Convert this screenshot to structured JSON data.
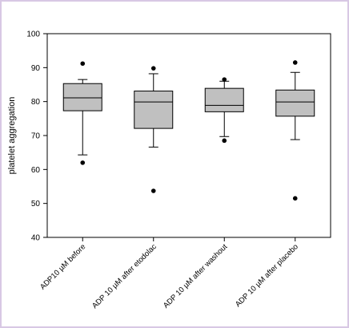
{
  "chart_data": {
    "type": "box",
    "title": "",
    "ylabel": "platelet aggregation",
    "xlabel": "",
    "ylim": [
      40,
      100
    ],
    "yticks": [
      40,
      50,
      60,
      70,
      80,
      90,
      100
    ],
    "grid": false,
    "box_fill": "#c0c0c0",
    "categories": [
      "ADP10 µM before",
      "ADP 10 µM  after etodolac",
      "ADP 10 µM after washout",
      "ADP 10 µM after placebo"
    ],
    "boxes": [
      {
        "whisker_low": 64.3,
        "q1": 77.3,
        "median": 81.1,
        "q3": 85.3,
        "whisker_high": 86.5,
        "outliers": [
          62.0,
          91.2
        ]
      },
      {
        "whisker_low": 66.6,
        "q1": 72.1,
        "median": 79.9,
        "q3": 83.1,
        "whisker_high": 88.2,
        "outliers": [
          53.7,
          89.8
        ]
      },
      {
        "whisker_low": 69.7,
        "q1": 77.0,
        "median": 78.9,
        "q3": 83.9,
        "whisker_high": 86.0,
        "outliers": [
          68.5,
          86.5
        ]
      },
      {
        "whisker_low": 68.8,
        "q1": 75.7,
        "median": 79.9,
        "q3": 83.4,
        "whisker_high": 88.6,
        "outliers": [
          51.5,
          91.5
        ]
      }
    ]
  }
}
